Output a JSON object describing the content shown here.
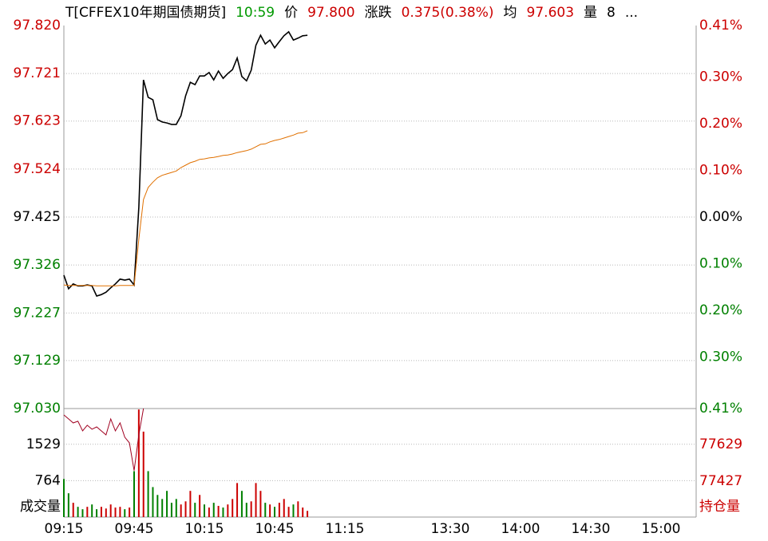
{
  "chart_data": [
    {
      "type": "line",
      "header": [
        {
          "text": "T[CFFEX10年期国债期货]",
          "color": "#000000"
        },
        {
          "text": "10:59",
          "color": "#009900"
        },
        {
          "text": "价",
          "color": "#000000"
        },
        {
          "text": "97.800",
          "color": "#cc0000"
        },
        {
          "text": "涨跌",
          "color": "#000000"
        },
        {
          "text": "0.375(0.38%)",
          "color": "#cc0000"
        },
        {
          "text": "均",
          "color": "#000000"
        },
        {
          "text": "97.603",
          "color": "#cc0000"
        },
        {
          "text": "量",
          "color": "#000000"
        },
        {
          "text": "8",
          "color": "#000000"
        },
        {
          "text": "...",
          "color": "#000000"
        }
      ],
      "up_color": "#cc0000",
      "down_color": "#008000",
      "flat_color": "#000000",
      "xlim": [
        "09:15",
        "15:15"
      ],
      "xticks": [
        "09:15",
        "09:45",
        "10:15",
        "10:45",
        "11:15",
        "13:30",
        "14:00",
        "14:30",
        "15:00"
      ],
      "x": [
        "09:15",
        "09:17",
        "09:19",
        "09:21",
        "09:23",
        "09:25",
        "09:27",
        "09:29",
        "09:31",
        "09:33",
        "09:35",
        "09:37",
        "09:39",
        "09:41",
        "09:43",
        "09:45",
        "09:47",
        "09:49",
        "09:51",
        "09:53",
        "09:55",
        "09:57",
        "09:59",
        "10:01",
        "10:03",
        "10:05",
        "10:07",
        "10:09",
        "10:11",
        "10:13",
        "10:15",
        "10:17",
        "10:19",
        "10:21",
        "10:23",
        "10:25",
        "10:27",
        "10:29",
        "10:31",
        "10:33",
        "10:35",
        "10:37",
        "10:39",
        "10:41",
        "10:43",
        "10:45",
        "10:47",
        "10:49",
        "10:51",
        "10:53",
        "10:55",
        "10:57",
        "10:59"
      ],
      "ylim": [
        97.03,
        97.82
      ],
      "yticks": [
        {
          "value": 97.82,
          "label": "97.820"
        },
        97.721,
        97.623,
        97.524,
        97.425,
        97.326,
        97.227,
        97.129,
        {
          "value": 97.03,
          "label": "97.030"
        }
      ],
      "y2lim": [
        -0.41,
        0.41
      ],
      "y2ticks": [
        {
          "value": 0.41,
          "label": "0.41%"
        },
        {
          "value": 0.3,
          "label": "0.30%"
        },
        {
          "value": 0.2,
          "label": "0.20%"
        },
        {
          "value": 0.1,
          "label": "0.10%"
        },
        {
          "value": 0,
          "label": "0.00%"
        },
        {
          "value": -0.1,
          "label": "0.10%"
        },
        {
          "value": -0.2,
          "label": "0.20%"
        },
        {
          "value": -0.3,
          "label": "0.30%"
        },
        {
          "value": -0.41,
          "label": "0.41%"
        }
      ],
      "grid": true,
      "series": [
        {
          "name": "价",
          "color": "#000000",
          "values": [
            97.305,
            97.277,
            97.287,
            97.283,
            97.283,
            97.285,
            97.283,
            97.262,
            97.265,
            97.27,
            97.279,
            97.287,
            97.297,
            97.295,
            97.297,
            97.285,
            97.445,
            97.708,
            97.672,
            97.667,
            97.626,
            97.621,
            97.619,
            97.616,
            97.616,
            97.634,
            97.675,
            97.703,
            97.698,
            97.716,
            97.716,
            97.723,
            97.708,
            97.726,
            97.711,
            97.721,
            97.729,
            97.753,
            97.715,
            97.706,
            97.728,
            97.779,
            97.8,
            97.782,
            97.79,
            97.774,
            97.787,
            97.799,
            97.807,
            97.79,
            97.794,
            97.799,
            97.8
          ]
        },
        {
          "name": "均",
          "color": "#e07000",
          "values": [
            97.285,
            97.284,
            97.284,
            97.284,
            97.284,
            97.284,
            97.284,
            97.283,
            97.283,
            97.283,
            97.283,
            97.283,
            97.284,
            97.284,
            97.284,
            97.284,
            97.379,
            97.461,
            97.486,
            97.497,
            97.506,
            97.511,
            97.514,
            97.517,
            97.52,
            97.527,
            97.532,
            97.537,
            97.54,
            97.544,
            97.545,
            97.547,
            97.548,
            97.55,
            97.552,
            97.553,
            97.555,
            97.558,
            97.56,
            97.562,
            97.565,
            97.57,
            97.575,
            97.576,
            97.58,
            97.583,
            97.585,
            97.588,
            97.591,
            97.594,
            97.598,
            97.599,
            97.603
          ]
        }
      ]
    },
    {
      "type": "bar",
      "ylabel": "成交量",
      "y2label": "持仓量",
      "y2color": "#cc0000",
      "ylim": [
        0,
        2280
      ],
      "yticks": [
        1529,
        764
      ],
      "y2lim": [
        77229,
        77827
      ],
      "y2ticks": [
        77629,
        77427
      ],
      "grid": true,
      "values": [
        800,
        500,
        300,
        215,
        165,
        215,
        265,
        165,
        215,
        180,
        265,
        200,
        215,
        165,
        200,
        965,
        2260,
        1795,
        965,
        630,
        465,
        380,
        550,
        300,
        380,
        265,
        330,
        550,
        300,
        465,
        265,
        200,
        300,
        235,
        200,
        265,
        380,
        715,
        550,
        300,
        330,
        715,
        550,
        300,
        265,
        215,
        300,
        380,
        215,
        265,
        330,
        200,
        130
      ],
      "series": [
        {
          "name": "持仓量",
          "color": "#a00020",
          "axis": "y2",
          "values": [
            77792,
            77770,
            77748,
            77757,
            77704,
            77735,
            77713,
            77726,
            77704,
            77682,
            77770,
            77704,
            77748,
            77669,
            77638,
            77485,
            77682,
            77827,
            null,
            null,
            null,
            null,
            null,
            null,
            null,
            null,
            null,
            null,
            null,
            null,
            null,
            null,
            null,
            null,
            null,
            null,
            null,
            null,
            null,
            null,
            null,
            null,
            null,
            null,
            null,
            null,
            null,
            null,
            null,
            null,
            null,
            null,
            null
          ]
        }
      ]
    }
  ]
}
